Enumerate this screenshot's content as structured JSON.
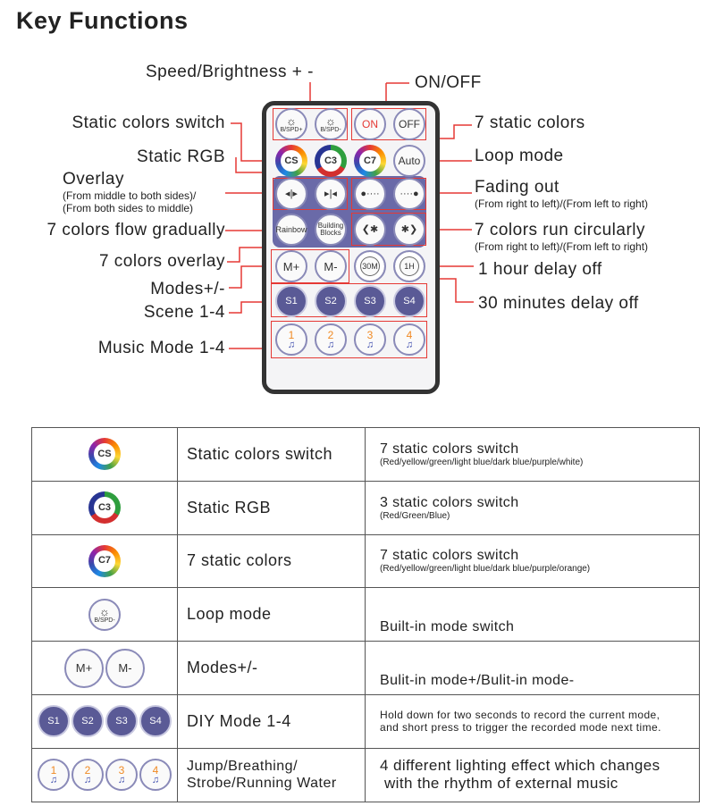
{
  "title": "Key Functions",
  "labels": {
    "speed": "Speed/Brightness + -",
    "onoff": "ON/OFF",
    "static_switch": "Static colors switch",
    "static_rgb": "Static RGB",
    "overlay": "Overlay",
    "overlay_sub1": "(From middle to both sides)/",
    "overlay_sub2": "(From both sides to middle)",
    "flow": "7 colors flow gradually",
    "overlay7": "7 colors overlay",
    "modes": "Modes+/-",
    "scene": "Scene 1-4",
    "music": "Music Mode 1-4",
    "static7": "7 static colors",
    "loop": "Loop mode",
    "fading": "Fading out",
    "fading_sub": "(From right to left)/(From left to right)",
    "run": "7 colors run circularly",
    "run_sub": "(From right to left)/(From left to right)",
    "delay1h": "1 hour delay off",
    "delay30": "30 minutes delay off"
  },
  "remote": {
    "spd_plus": "B/SPD+",
    "spd_minus": "B/SPD-",
    "on": "ON",
    "off": "OFF",
    "cs": "CS",
    "c3": "C3",
    "c7": "C7",
    "auto": "Auto",
    "rainbow": "Rainbow",
    "building": "Building Blocks",
    "m_plus": "M+",
    "m_minus": "M-",
    "t30": "30M",
    "t1h": "1H",
    "scenes": [
      "S1",
      "S2",
      "S3",
      "S4"
    ],
    "music": [
      "1",
      "2",
      "3",
      "4"
    ]
  },
  "table": [
    {
      "icon": "CS",
      "function": "Static colors switch",
      "desc": "7 static colors switch",
      "detail": "(Red/yellow/green/light blue/dark blue/purple/white)"
    },
    {
      "icon": "C3",
      "function": "Static RGB",
      "desc": "3 static colors switch",
      "detail": "(Red/Green/Blue)"
    },
    {
      "icon": "C7",
      "function": "7 static colors",
      "desc": "7 static colors switch",
      "detail": "(Red/yellow/green/light blue/dark blue/purple/orange)"
    },
    {
      "icon": "B/SPD-",
      "function": "Loop mode",
      "desc": "Built-in mode switch",
      "detail": ""
    },
    {
      "icon": "M+/M-",
      "function": "Modes+/-",
      "desc": "Bulit-in mode+/Bulit-in mode-",
      "detail": ""
    },
    {
      "icon": "S1-S4",
      "function": "DIY Mode 1-4",
      "desc": "",
      "detail": "Hold down for two seconds to record the current mode,",
      "detail2": "and short press to trigger the recorded mode next time."
    },
    {
      "icon": "1-4",
      "function": "Jump/Breathing/",
      "function2": "Strobe/Running Water",
      "desc": "4 different lighting effect which changes",
      "desc2": "with the rhythm of external music"
    }
  ],
  "colors": {
    "accent": "#e53935",
    "panel": "#6a6aa8"
  }
}
